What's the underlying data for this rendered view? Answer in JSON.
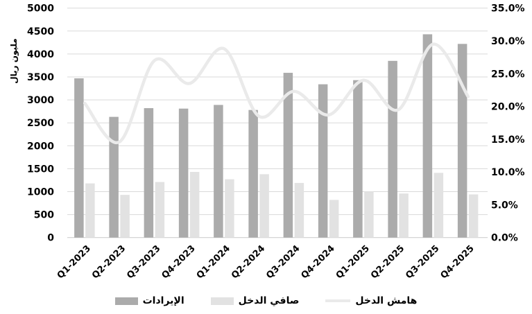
{
  "chart_data": {
    "type": "combo-bar-line",
    "title": "",
    "categories": [
      "Q1-2023",
      "Q2-2023",
      "Q3-2023",
      "Q4-2023",
      "Q1-2024",
      "Q2-2024",
      "Q3-2024",
      "Q4-2024",
      "Q1-2025",
      "Q2-2025",
      "Q3-2025",
      "Q4-2025"
    ],
    "series": [
      {
        "name": "الإيرادات",
        "type": "bar",
        "axis": "left",
        "color": "#ABABAB",
        "values": [
          3470,
          2630,
          2820,
          2810,
          2890,
          2780,
          3590,
          3340,
          3430,
          3850,
          4430,
          4220
        ]
      },
      {
        "name": "صافي الدخل",
        "type": "bar",
        "axis": "left",
        "color": "#E2E2E2",
        "values": [
          1180,
          930,
          1210,
          1430,
          1270,
          1380,
          1190,
          820,
          1000,
          960,
          1410,
          940
        ]
      },
      {
        "name": "هامش الدخل",
        "type": "line",
        "smooth": true,
        "axis": "right",
        "color": "#EAEAEA",
        "values": [
          20.5,
          14.6,
          27.0,
          23.5,
          28.8,
          18.5,
          22.3,
          18.7,
          24.0,
          19.5,
          29.5,
          21.5
        ]
      }
    ],
    "left_axis": {
      "title": "مليون ريال",
      "min": 0,
      "max": 5000,
      "step": 500,
      "ticks": [
        "5000",
        "4500",
        "4000",
        "3500",
        "3000",
        "2500",
        "2000",
        "1500",
        "1000",
        "500",
        "0"
      ]
    },
    "right_axis": {
      "min": 0,
      "max": 35,
      "step": 5,
      "ticks": [
        "35.0%",
        "30.0%",
        "25.0%",
        "20.0%",
        "15.0%",
        "10.0%",
        "5.0%",
        "0.0%"
      ]
    },
    "grid": true,
    "legend_position": "bottom",
    "colors": {
      "gridline": "#D9D9D9",
      "axis_line": "#C9C9C9",
      "text": "#000000",
      "background": "#FFFFFF"
    }
  }
}
